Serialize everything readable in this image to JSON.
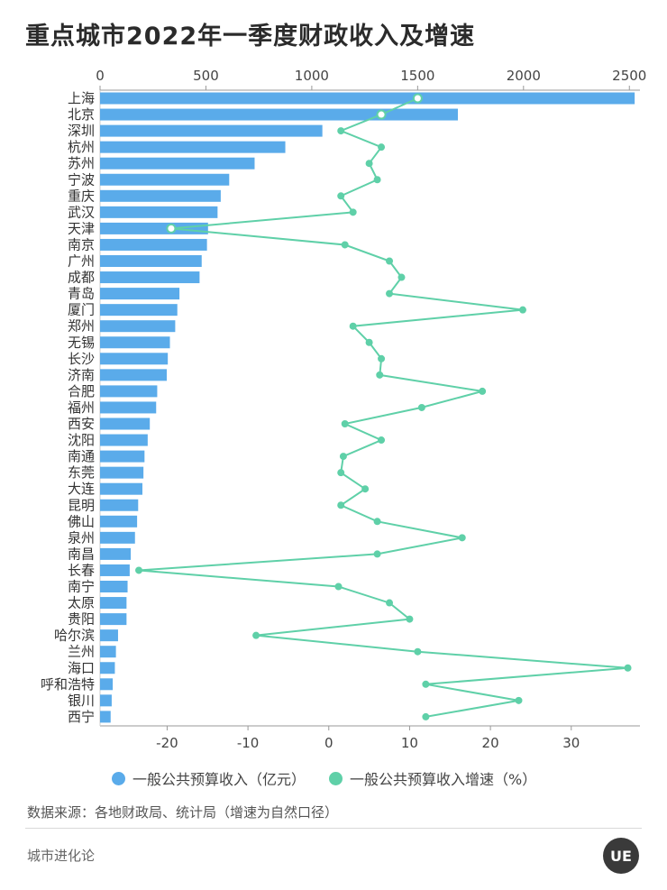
{
  "title": "重点城市2022年一季度财政收入及增速",
  "legend": {
    "revenue_label": "一般公共预算收入（亿元）",
    "growth_label": "一般公共预算收入增速（%）"
  },
  "source": "数据来源：各地财政局、统计局（增速为自然口径）",
  "footer": "城市进化论",
  "logo_text": "UE",
  "colors": {
    "bar": "#5aabea",
    "line": "#5fd0a8",
    "axis": "#999999"
  },
  "chart_data": {
    "type": "bar",
    "orientation": "horizontal",
    "categories": [
      "上海",
      "北京",
      "深圳",
      "杭州",
      "苏州",
      "宁波",
      "重庆",
      "武汉",
      "天津",
      "南京",
      "广州",
      "成都",
      "青岛",
      "厦门",
      "郑州",
      "无锡",
      "长沙",
      "济南",
      "合肥",
      "福州",
      "西安",
      "沈阳",
      "南通",
      "东莞",
      "大连",
      "昆明",
      "佛山",
      "泉州",
      "南昌",
      "长春",
      "南宁",
      "太原",
      "贵阳",
      "哈尔滨",
      "兰州",
      "海口",
      "呼和浩特",
      "银川",
      "西宁"
    ],
    "series": [
      {
        "name": "一般公共预算收入（亿元）",
        "axis": "top",
        "values": [
          2525,
          1690,
          1050,
          875,
          730,
          610,
          570,
          555,
          510,
          505,
          480,
          470,
          375,
          365,
          355,
          330,
          320,
          315,
          270,
          265,
          235,
          225,
          210,
          205,
          200,
          180,
          175,
          165,
          145,
          140,
          130,
          125,
          125,
          85,
          75,
          70,
          60,
          55,
          50
        ]
      },
      {
        "name": "一般公共预算收入增速（%）",
        "axis": "bottom",
        "type": "line",
        "values": [
          11,
          6.5,
          1.5,
          6.5,
          5,
          6,
          1.5,
          3,
          -19.5,
          2,
          7.5,
          9,
          7.5,
          24,
          3,
          5,
          6.5,
          6.3,
          19,
          11.5,
          2,
          6.5,
          1.8,
          1.5,
          4.5,
          1.5,
          6,
          16.5,
          6,
          -23.5,
          1.2,
          7.5,
          10,
          -9,
          11,
          37,
          12,
          23.5,
          12
        ]
      }
    ],
    "xaxis_top": {
      "ticks": [
        0,
        500,
        1000,
        1500,
        2000,
        2500
      ],
      "range": [
        0,
        2550
      ]
    },
    "xaxis_bottom": {
      "ticks": [
        -20,
        -10,
        0,
        10,
        20,
        30
      ],
      "range": [
        -28.3,
        38.5
      ]
    },
    "highlighted": [
      "上海",
      "北京",
      "天津"
    ],
    "grid": false
  }
}
